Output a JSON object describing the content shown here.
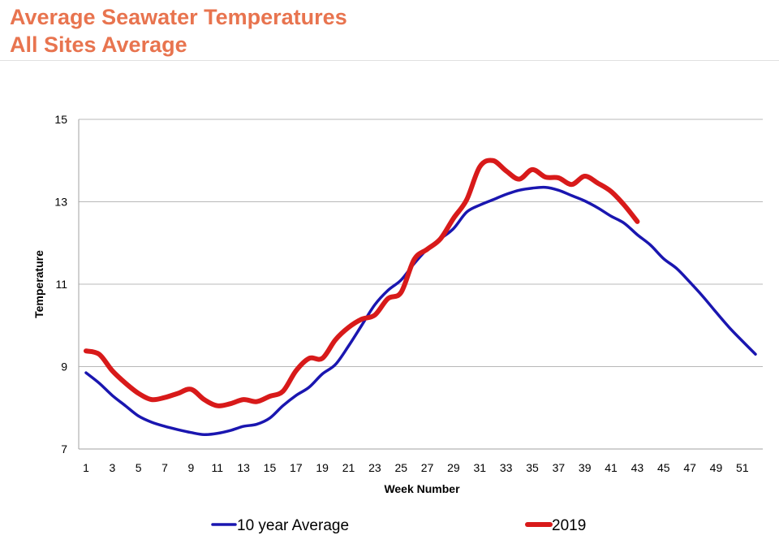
{
  "header": {
    "title_line1": "Average Seawater Temperatures",
    "title_line2": "All Sites Average"
  },
  "chart_data": {
    "type": "line",
    "title": "Average Seawater Temperatures All Sites Average",
    "xlabel": "Week Number",
    "ylabel": "Temperature",
    "xlim": [
      1,
      52
    ],
    "ylim": [
      7,
      15
    ],
    "yticks": [
      7,
      9,
      11,
      13,
      15
    ],
    "xticks": [
      1,
      3,
      5,
      7,
      9,
      11,
      13,
      15,
      17,
      19,
      21,
      23,
      25,
      27,
      29,
      31,
      33,
      35,
      37,
      39,
      41,
      43,
      45,
      47,
      49,
      51
    ],
    "grid": "horizontal",
    "legend": "bottom",
    "series": [
      {
        "name": "10 year Average",
        "color": "#1a16b0",
        "x": [
          1,
          2,
          3,
          4,
          5,
          6,
          7,
          8,
          9,
          10,
          11,
          12,
          13,
          14,
          15,
          16,
          17,
          18,
          19,
          20,
          21,
          22,
          23,
          24,
          25,
          26,
          27,
          28,
          29,
          30,
          31,
          32,
          33,
          34,
          35,
          36,
          37,
          38,
          39,
          40,
          41,
          42,
          43,
          44,
          45,
          46,
          47,
          48,
          49,
          50,
          51,
          52
        ],
        "values": [
          8.85,
          8.6,
          8.3,
          8.05,
          7.8,
          7.65,
          7.55,
          7.47,
          7.4,
          7.35,
          7.38,
          7.45,
          7.55,
          7.6,
          7.75,
          8.05,
          8.3,
          8.5,
          8.82,
          9.05,
          9.5,
          10.0,
          10.5,
          10.85,
          11.1,
          11.5,
          11.85,
          12.1,
          12.35,
          12.75,
          12.92,
          13.05,
          13.18,
          13.28,
          13.33,
          13.35,
          13.28,
          13.15,
          13.02,
          12.85,
          12.65,
          12.48,
          12.2,
          11.95,
          11.62,
          11.38,
          11.05,
          10.7,
          10.32,
          9.95,
          9.62,
          9.3
        ]
      },
      {
        "name": "2019",
        "color": "#d81a1a",
        "x": [
          1,
          2,
          3,
          4,
          5,
          6,
          7,
          8,
          9,
          10,
          11,
          12,
          13,
          14,
          15,
          16,
          17,
          18,
          19,
          20,
          21,
          22,
          23,
          24,
          25,
          26,
          27,
          28,
          29,
          30,
          31,
          32,
          33,
          34,
          35,
          36,
          37,
          38,
          39,
          40,
          41,
          42,
          43
        ],
        "values": [
          9.38,
          9.3,
          8.9,
          8.6,
          8.35,
          8.2,
          8.25,
          8.35,
          8.45,
          8.2,
          8.05,
          8.1,
          8.2,
          8.15,
          8.28,
          8.4,
          8.9,
          9.2,
          9.2,
          9.65,
          9.95,
          10.15,
          10.25,
          10.65,
          10.8,
          11.6,
          11.85,
          12.1,
          12.6,
          13.05,
          13.85,
          14.0,
          13.75,
          13.55,
          13.78,
          13.6,
          13.58,
          13.42,
          13.62,
          13.45,
          13.25,
          12.92,
          12.52
        ]
      }
    ]
  }
}
